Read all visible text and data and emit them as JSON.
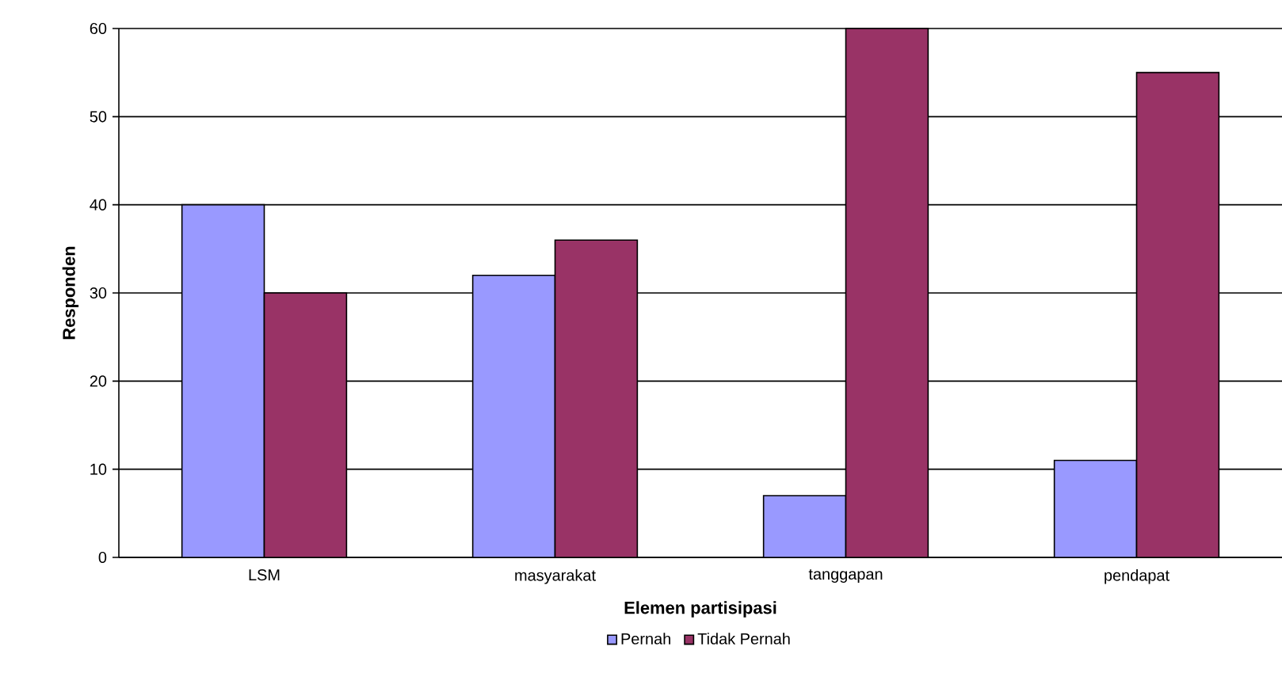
{
  "chart_data": {
    "type": "bar",
    "xlabel": "Elemen partisipasi",
    "ylabel": "Responden",
    "categories": [
      "LSM",
      "masyarakat",
      "tanggapan",
      "pendapat"
    ],
    "series": [
      {
        "name": "Pernah",
        "color": "#9999ff",
        "values": [
          40,
          32,
          7,
          11
        ]
      },
      {
        "name": "Tidak Pernah",
        "color": "#993366",
        "values": [
          30,
          36,
          60,
          55
        ]
      }
    ],
    "ylim": [
      0,
      60
    ],
    "yticks": [
      0,
      10,
      20,
      30,
      40,
      50,
      60
    ],
    "grid": "y",
    "legend": "bottom"
  }
}
